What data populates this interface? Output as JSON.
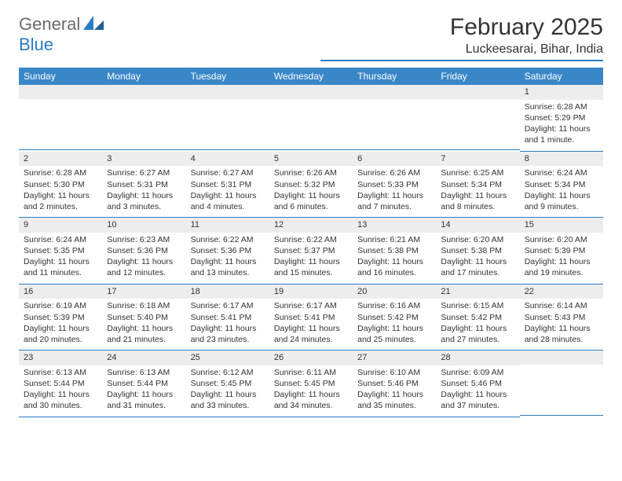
{
  "logo": {
    "part1": "General",
    "part2": "Blue"
  },
  "title": "February 2025",
  "location": "Luckeesarai, Bihar, India",
  "colors": {
    "header_bg": "#3a87c8",
    "header_fg": "#ffffff",
    "rule": "#2b7cc4",
    "daynum_bg": "#ededed",
    "text": "#333333"
  },
  "weekdays": [
    "Sunday",
    "Monday",
    "Tuesday",
    "Wednesday",
    "Thursday",
    "Friday",
    "Saturday"
  ],
  "first_weekday_index": 6,
  "days": [
    {
      "n": 1,
      "sr": "6:28 AM",
      "ss": "5:29 PM",
      "dl": "11 hours and 1 minute."
    },
    {
      "n": 2,
      "sr": "6:28 AM",
      "ss": "5:30 PM",
      "dl": "11 hours and 2 minutes."
    },
    {
      "n": 3,
      "sr": "6:27 AM",
      "ss": "5:31 PM",
      "dl": "11 hours and 3 minutes."
    },
    {
      "n": 4,
      "sr": "6:27 AM",
      "ss": "5:31 PM",
      "dl": "11 hours and 4 minutes."
    },
    {
      "n": 5,
      "sr": "6:26 AM",
      "ss": "5:32 PM",
      "dl": "11 hours and 6 minutes."
    },
    {
      "n": 6,
      "sr": "6:26 AM",
      "ss": "5:33 PM",
      "dl": "11 hours and 7 minutes."
    },
    {
      "n": 7,
      "sr": "6:25 AM",
      "ss": "5:34 PM",
      "dl": "11 hours and 8 minutes."
    },
    {
      "n": 8,
      "sr": "6:24 AM",
      "ss": "5:34 PM",
      "dl": "11 hours and 9 minutes."
    },
    {
      "n": 9,
      "sr": "6:24 AM",
      "ss": "5:35 PM",
      "dl": "11 hours and 11 minutes."
    },
    {
      "n": 10,
      "sr": "6:23 AM",
      "ss": "5:36 PM",
      "dl": "11 hours and 12 minutes."
    },
    {
      "n": 11,
      "sr": "6:22 AM",
      "ss": "5:36 PM",
      "dl": "11 hours and 13 minutes."
    },
    {
      "n": 12,
      "sr": "6:22 AM",
      "ss": "5:37 PM",
      "dl": "11 hours and 15 minutes."
    },
    {
      "n": 13,
      "sr": "6:21 AM",
      "ss": "5:38 PM",
      "dl": "11 hours and 16 minutes."
    },
    {
      "n": 14,
      "sr": "6:20 AM",
      "ss": "5:38 PM",
      "dl": "11 hours and 17 minutes."
    },
    {
      "n": 15,
      "sr": "6:20 AM",
      "ss": "5:39 PM",
      "dl": "11 hours and 19 minutes."
    },
    {
      "n": 16,
      "sr": "6:19 AM",
      "ss": "5:39 PM",
      "dl": "11 hours and 20 minutes."
    },
    {
      "n": 17,
      "sr": "6:18 AM",
      "ss": "5:40 PM",
      "dl": "11 hours and 21 minutes."
    },
    {
      "n": 18,
      "sr": "6:17 AM",
      "ss": "5:41 PM",
      "dl": "11 hours and 23 minutes."
    },
    {
      "n": 19,
      "sr": "6:17 AM",
      "ss": "5:41 PM",
      "dl": "11 hours and 24 minutes."
    },
    {
      "n": 20,
      "sr": "6:16 AM",
      "ss": "5:42 PM",
      "dl": "11 hours and 25 minutes."
    },
    {
      "n": 21,
      "sr": "6:15 AM",
      "ss": "5:42 PM",
      "dl": "11 hours and 27 minutes."
    },
    {
      "n": 22,
      "sr": "6:14 AM",
      "ss": "5:43 PM",
      "dl": "11 hours and 28 minutes."
    },
    {
      "n": 23,
      "sr": "6:13 AM",
      "ss": "5:44 PM",
      "dl": "11 hours and 30 minutes."
    },
    {
      "n": 24,
      "sr": "6:13 AM",
      "ss": "5:44 PM",
      "dl": "11 hours and 31 minutes."
    },
    {
      "n": 25,
      "sr": "6:12 AM",
      "ss": "5:45 PM",
      "dl": "11 hours and 33 minutes."
    },
    {
      "n": 26,
      "sr": "6:11 AM",
      "ss": "5:45 PM",
      "dl": "11 hours and 34 minutes."
    },
    {
      "n": 27,
      "sr": "6:10 AM",
      "ss": "5:46 PM",
      "dl": "11 hours and 35 minutes."
    },
    {
      "n": 28,
      "sr": "6:09 AM",
      "ss": "5:46 PM",
      "dl": "11 hours and 37 minutes."
    }
  ],
  "labels": {
    "sunrise": "Sunrise:",
    "sunset": "Sunset:",
    "daylight": "Daylight:"
  }
}
